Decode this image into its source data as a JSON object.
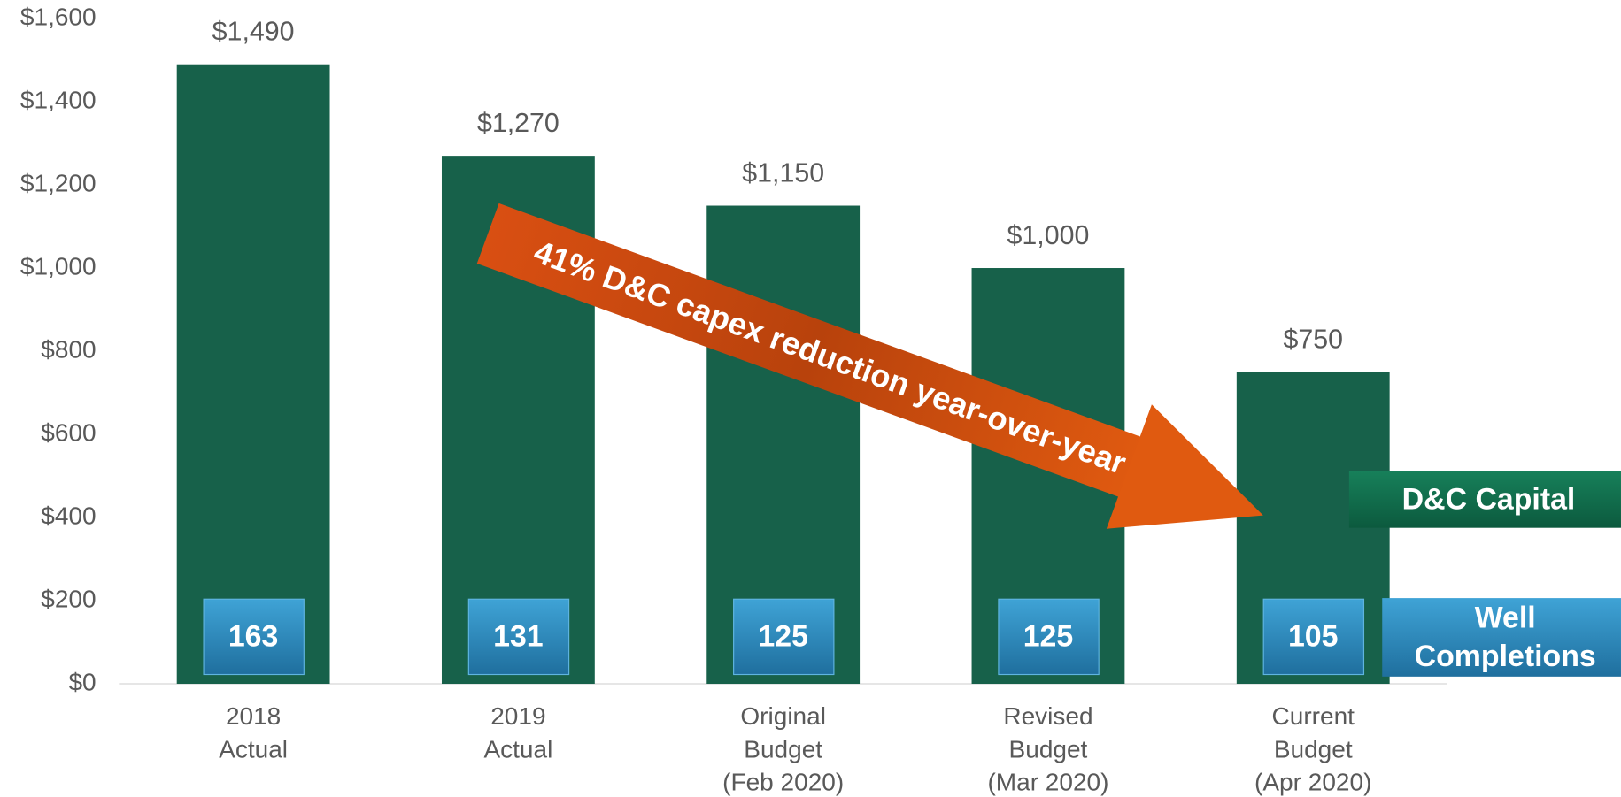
{
  "chart_data": {
    "type": "bar",
    "categories": [
      [
        "2018",
        "Actual"
      ],
      [
        "2019",
        "Actual"
      ],
      [
        "Original",
        "Budget",
        "(Feb 2020)"
      ],
      [
        "Revised",
        "Budget",
        "(Mar 2020)"
      ],
      [
        "Current",
        "Budget",
        "(Apr 2020)"
      ]
    ],
    "series": [
      {
        "name": "D&C Capital",
        "color": "#17614a",
        "values": [
          1490,
          1270,
          1150,
          1000,
          750
        ],
        "value_labels": [
          "$1,490",
          "$1,270",
          "$1,150",
          "$1,000",
          "$750"
        ]
      }
    ],
    "well_completions": {
      "name": [
        "Well",
        "Completions"
      ],
      "color": "#2f8fc4",
      "values": [
        163,
        131,
        125,
        125,
        105
      ]
    },
    "annotation": "41% D&C capex reduction year-over-year",
    "ylim": [
      0,
      1600
    ],
    "yticks": [
      {
        "value": 0,
        "label": "$0"
      },
      {
        "value": 200,
        "label": "$200"
      },
      {
        "value": 400,
        "label": "$400"
      },
      {
        "value": 600,
        "label": "$600"
      },
      {
        "value": 800,
        "label": "$800"
      },
      {
        "value": 1000,
        "label": "$1,000"
      },
      {
        "value": 1200,
        "label": "$1,200"
      },
      {
        "value": 1400,
        "label": "$1,400"
      },
      {
        "value": 1600,
        "label": "$1,600"
      }
    ],
    "grid": false
  }
}
